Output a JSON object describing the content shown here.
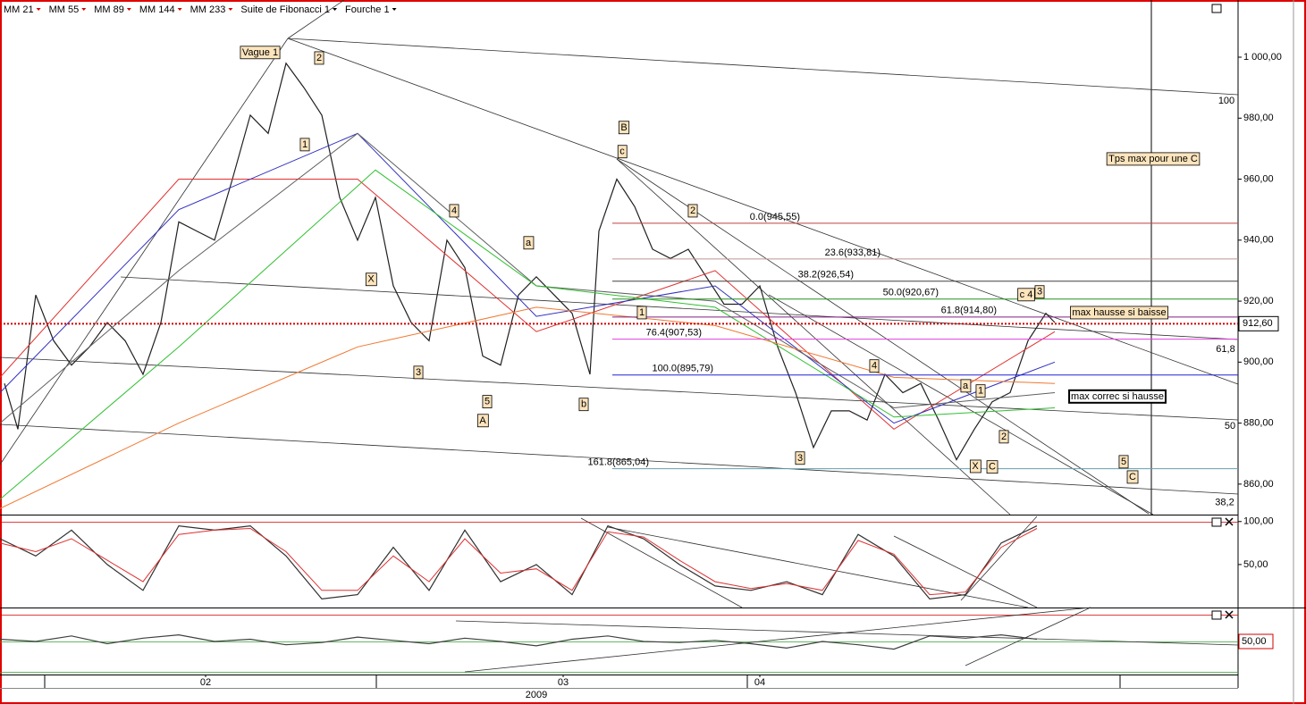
{
  "tools": [
    "Suite de Fibonacci 1",
    "Fourche 1"
  ],
  "chart_data": [
    {
      "type": "line",
      "xlim": [
        0,
        138.5
      ],
      "xticks": [
        {
          "value": 23,
          "label": "02"
        },
        {
          "value": 63,
          "label": "03"
        },
        {
          "value": 85,
          "label": "04"
        }
      ],
      "x_year": {
        "value": 60,
        "label": "2009"
      },
      "ylim": [
        850,
        1018.75
      ],
      "yticks": [
        {
          "value": 860,
          "label": "860,00"
        },
        {
          "value": 880,
          "label": "880,00"
        },
        {
          "value": 900,
          "label": "900,00"
        },
        {
          "value": 920,
          "label": "920,00"
        },
        {
          "value": 940,
          "label": "940,00"
        },
        {
          "value": 960,
          "label": "960,00"
        },
        {
          "value": 980,
          "label": "980,00"
        },
        {
          "value": 1000,
          "label": "1 000,00"
        }
      ],
      "series": [
        {
          "color": "#202020",
          "x": [
            0.5,
            2,
            4,
            6,
            8,
            10,
            12,
            14,
            16,
            18,
            20,
            22,
            24,
            26,
            28,
            30,
            32,
            34,
            36,
            38,
            40,
            42,
            44,
            46,
            48,
            50,
            52,
            54,
            56,
            58,
            60,
            62,
            64,
            66,
            67,
            69,
            71,
            73,
            75,
            77,
            79,
            81,
            83,
            85,
            87,
            89,
            91,
            93,
            95,
            97,
            99,
            101,
            103,
            105,
            107,
            109,
            111,
            113,
            115,
            117,
            118
          ],
          "values": [
            893,
            878,
            922,
            907,
            899,
            905,
            913,
            907,
            896,
            913,
            946,
            943,
            940,
            960,
            981,
            975,
            998,
            990,
            981,
            954,
            940,
            954,
            925,
            913,
            907,
            940,
            931,
            902,
            899,
            922,
            928,
            922,
            916,
            896,
            943,
            960,
            951,
            937,
            934,
            937,
            928,
            919,
            919,
            925,
            905,
            890,
            872,
            884,
            884,
            881,
            896,
            890,
            893,
            881,
            868,
            878,
            887,
            890,
            907,
            916,
            913
          ]
        },
        {
          "name": "MM 21",
          "color": "#e03030",
          "x": [
            0,
            20,
            40,
            60,
            80,
            100,
            118
          ],
          "values": [
            895,
            960,
            960,
            910,
            930,
            878,
            910
          ]
        },
        {
          "name": "MM 55",
          "color": "#3030c0",
          "x": [
            0,
            20,
            40,
            60,
            80,
            100,
            118
          ],
          "values": [
            890,
            950,
            975,
            915,
            925,
            880,
            900
          ]
        },
        {
          "name": "MM 89",
          "color": "#606060",
          "x": [
            0,
            20,
            40,
            60,
            80,
            100,
            118
          ],
          "values": [
            880,
            930,
            975,
            925,
            920,
            885,
            890
          ]
        },
        {
          "name": "MM 144",
          "color": "#30c030",
          "x": [
            0,
            20,
            42,
            60,
            80,
            100,
            118
          ],
          "values": [
            855,
            905,
            963,
            925,
            918,
            882,
            885
          ]
        },
        {
          "name": "MM 233",
          "color": "#f07830",
          "x": [
            0,
            20,
            40,
            60,
            80,
            100,
            118
          ],
          "values": [
            852,
            880,
            905,
            918,
            912,
            895,
            893
          ]
        }
      ],
      "fib_levels": [
        {
          "label": "0.0(945,55)",
          "value": 945.55,
          "color": "#c04040"
        },
        {
          "label": "23.6(933,81)",
          "value": 933.81,
          "color": "#c09090"
        },
        {
          "label": "38.2(926,54)",
          "value": 926.54,
          "color": "#404040"
        },
        {
          "label": "50.0(920,67)",
          "value": 920.67,
          "color": "#209020"
        },
        {
          "label": "61.8(914,80)",
          "value": 914.8,
          "color": "#802080"
        },
        {
          "label": "76.4(907,53)",
          "value": 907.53,
          "color": "#e040e0"
        },
        {
          "label": "100.0(895,79)",
          "value": 895.79,
          "color": "#2020d0"
        },
        {
          "label": "161.8(865,04)",
          "value": 865.04,
          "color": "#60a0b0"
        }
      ],
      "last_price": {
        "value": 912.6,
        "label": "912,60",
        "color": "#d00000"
      },
      "annotations": [
        {
          "text": "Vague 1",
          "x": 29.1,
          "y": 1001.5
        },
        {
          "text": "2",
          "x": 35.7,
          "y": 999.7
        },
        {
          "text": "1",
          "x": 34.1,
          "y": 971.3
        },
        {
          "text": "X",
          "x": 41.5,
          "y": 927.1
        },
        {
          "text": "3",
          "x": 46.8,
          "y": 896.6
        },
        {
          "text": "4",
          "x": 50.8,
          "y": 949.6
        },
        {
          "text": "5",
          "x": 54.5,
          "y": 887
        },
        {
          "text": "A",
          "x": 54,
          "y": 880.8
        },
        {
          "text": "a",
          "x": 59.1,
          "y": 939.1
        },
        {
          "text": "b",
          "x": 65.3,
          "y": 886.1
        },
        {
          "text": "B",
          "x": 69.8,
          "y": 976.9
        },
        {
          "text": "c",
          "x": 69.6,
          "y": 969
        },
        {
          "text": "1",
          "x": 71.8,
          "y": 916.2
        },
        {
          "text": "2",
          "x": 77.5,
          "y": 949.6
        },
        {
          "text": "3",
          "x": 89.5,
          "y": 868.5
        },
        {
          "text": "4",
          "x": 97.8,
          "y": 898.7
        },
        {
          "text": "a",
          "x": 108,
          "y": 892.2
        },
        {
          "text": "1",
          "x": 109.7,
          "y": 890.5
        },
        {
          "text": "2",
          "x": 112.3,
          "y": 875.5
        },
        {
          "text": "X",
          "x": 109.1,
          "y": 865.8
        },
        {
          "text": "C",
          "x": 111,
          "y": 865.6
        },
        {
          "text": "c 4",
          "x": 114.8,
          "y": 922.1
        },
        {
          "text": "3",
          "x": 116.3,
          "y": 923
        },
        {
          "text": "5",
          "x": 125.7,
          "y": 867.3
        },
        {
          "text": "C",
          "x": 126.7,
          "y": 862.3
        },
        {
          "text": "max hausse si baisse",
          "x": 125.2,
          "y": 916.2
        },
        {
          "text": "max  correc si hausse",
          "x": 125,
          "y": 888.7,
          "color": "#d00000"
        },
        {
          "text": "Tps max pour une C",
          "x": 129,
          "y": 966.6
        }
      ],
      "fork_labels": [
        {
          "text": "100",
          "x": 137.2,
          "y": 985.6
        },
        {
          "text": "61,8",
          "x": 137.1,
          "y": 904.2
        },
        {
          "text": "50",
          "x": 137.6,
          "y": 879
        },
        {
          "text": "38,2",
          "x": 137,
          "y": 854
        }
      ]
    },
    {
      "type": "line",
      "ylim": [
        0,
        106
      ],
      "yticks": [
        {
          "value": 100,
          "label": "100,00"
        },
        {
          "value": 50,
          "label": "50,00"
        }
      ],
      "series": [
        {
          "color": "#303030",
          "x": [
            0,
            4,
            8,
            12,
            16,
            20,
            24,
            28,
            32,
            36,
            40,
            44,
            48,
            52,
            56,
            60,
            64,
            68,
            72,
            76,
            80,
            84,
            88,
            92,
            96,
            100,
            104,
            108,
            112,
            116
          ],
          "values": [
            80,
            60,
            90,
            50,
            20,
            95,
            90,
            95,
            60,
            10,
            15,
            70,
            20,
            90,
            30,
            50,
            15,
            95,
            80,
            50,
            25,
            20,
            30,
            15,
            85,
            60,
            10,
            15,
            75,
            95
          ]
        },
        {
          "color": "#e03030",
          "x": [
            0,
            4,
            8,
            12,
            16,
            20,
            24,
            28,
            32,
            36,
            40,
            44,
            48,
            52,
            56,
            60,
            64,
            68,
            72,
            76,
            80,
            84,
            88,
            92,
            96,
            100,
            104,
            108,
            112,
            116
          ],
          "values": [
            75,
            65,
            80,
            55,
            30,
            85,
            90,
            92,
            65,
            20,
            20,
            60,
            30,
            80,
            40,
            45,
            20,
            88,
            82,
            55,
            30,
            22,
            28,
            20,
            78,
            62,
            15,
            18,
            70,
            92
          ]
        }
      ]
    },
    {
      "type": "line",
      "ylim": [
        20,
        80
      ],
      "yticks": [
        {
          "value": 50,
          "label": "50,00"
        }
      ],
      "series": [
        {
          "color": "#404040",
          "x": [
            0,
            4,
            8,
            12,
            16,
            20,
            24,
            28,
            32,
            36,
            40,
            44,
            48,
            52,
            56,
            60,
            64,
            68,
            72,
            76,
            80,
            84,
            88,
            92,
            96,
            100,
            104,
            108,
            112,
            116
          ],
          "values": [
            52,
            50,
            55,
            48,
            53,
            56,
            50,
            52,
            47,
            49,
            54,
            51,
            48,
            53,
            50,
            46,
            52,
            55,
            50,
            49,
            51,
            48,
            44,
            50,
            47,
            43,
            55,
            53,
            56,
            52
          ]
        }
      ]
    }
  ]
}
